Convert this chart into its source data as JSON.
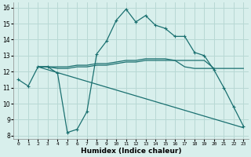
{
  "xlabel": "Humidex (Indice chaleur)",
  "xlim": [
    -0.5,
    23.5
  ],
  "ylim": [
    7.8,
    16.3
  ],
  "xticks": [
    0,
    1,
    2,
    3,
    4,
    5,
    6,
    7,
    8,
    9,
    10,
    11,
    12,
    13,
    14,
    15,
    16,
    17,
    18,
    19,
    20,
    21,
    22,
    23
  ],
  "yticks": [
    8,
    9,
    10,
    11,
    12,
    13,
    14,
    15,
    16
  ],
  "bg_color": "#d8efec",
  "grid_color": "#b8d8d4",
  "line_color": "#1a7070",
  "line1": {
    "x": [
      0,
      1,
      2,
      3,
      4,
      5,
      6,
      7,
      8,
      9,
      10,
      11,
      12,
      13,
      14,
      15,
      16,
      17,
      18,
      19,
      20,
      21,
      22,
      23
    ],
    "y": [
      11.5,
      11.1,
      12.3,
      12.3,
      11.9,
      8.2,
      8.4,
      9.5,
      13.1,
      13.9,
      15.2,
      15.9,
      15.1,
      15.5,
      14.9,
      14.7,
      14.2,
      14.2,
      13.2,
      13.0,
      12.1,
      11.0,
      9.8,
      8.6
    ]
  },
  "line2": {
    "x": [
      2,
      3,
      4,
      5,
      6,
      7,
      8,
      9,
      10,
      11,
      12,
      13,
      14,
      15,
      16,
      17,
      18,
      19,
      20
    ],
    "y": [
      12.3,
      12.3,
      12.3,
      12.3,
      12.4,
      12.4,
      12.5,
      12.5,
      12.6,
      12.7,
      12.7,
      12.8,
      12.8,
      12.8,
      12.7,
      12.3,
      12.2,
      12.2,
      12.2
    ]
  },
  "line3": {
    "x": [
      2,
      23
    ],
    "y": [
      12.3,
      8.5
    ]
  },
  "line4": {
    "x": [
      2,
      3,
      4,
      5,
      6,
      7,
      8,
      9,
      10,
      11,
      12,
      13,
      14,
      15,
      16,
      17,
      18,
      19,
      20,
      21,
      22,
      23
    ],
    "y": [
      12.3,
      12.3,
      12.2,
      12.2,
      12.3,
      12.3,
      12.4,
      12.4,
      12.5,
      12.6,
      12.6,
      12.7,
      12.7,
      12.7,
      12.7,
      12.7,
      12.7,
      12.7,
      12.2,
      12.2,
      12.2,
      12.2
    ]
  }
}
